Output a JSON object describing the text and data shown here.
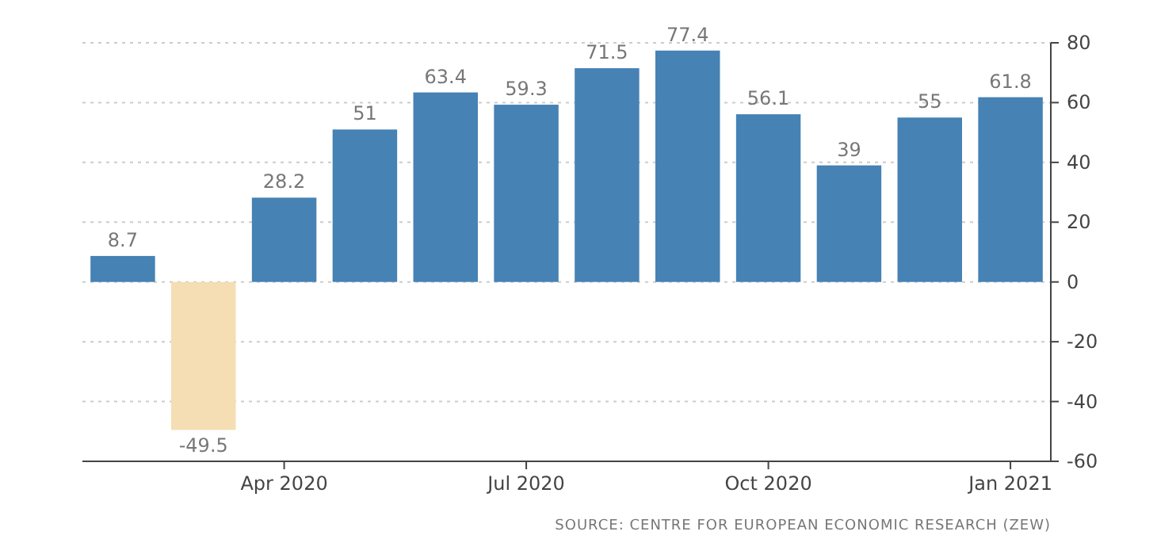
{
  "chart_data": {
    "type": "bar",
    "categories": [
      null,
      null,
      "Apr 2020",
      null,
      null,
      "Jul 2020",
      null,
      null,
      "Oct 2020",
      null,
      null,
      "Jan 2021"
    ],
    "values": [
      8.7,
      -49.5,
      28.2,
      51,
      63.4,
      59.3,
      71.5,
      77.4,
      56.1,
      39,
      55,
      61.8
    ],
    "colors": [
      "#4682b4",
      "#f5deb3",
      "#4682b4",
      "#4682b4",
      "#4682b4",
      "#4682b4",
      "#4682b4",
      "#4682b4",
      "#4682b4",
      "#4682b4",
      "#4682b4",
      "#4682b4"
    ],
    "ylim": [
      -60,
      80
    ],
    "yticks": [
      -60,
      -40,
      -20,
      0,
      20,
      40,
      60,
      80
    ],
    "grid": "y",
    "data_labels": true,
    "annotations": [
      "SOURCE: CENTRE FOR EUROPEAN ECONOMIC RESEARCH (ZEW)"
    ]
  }
}
